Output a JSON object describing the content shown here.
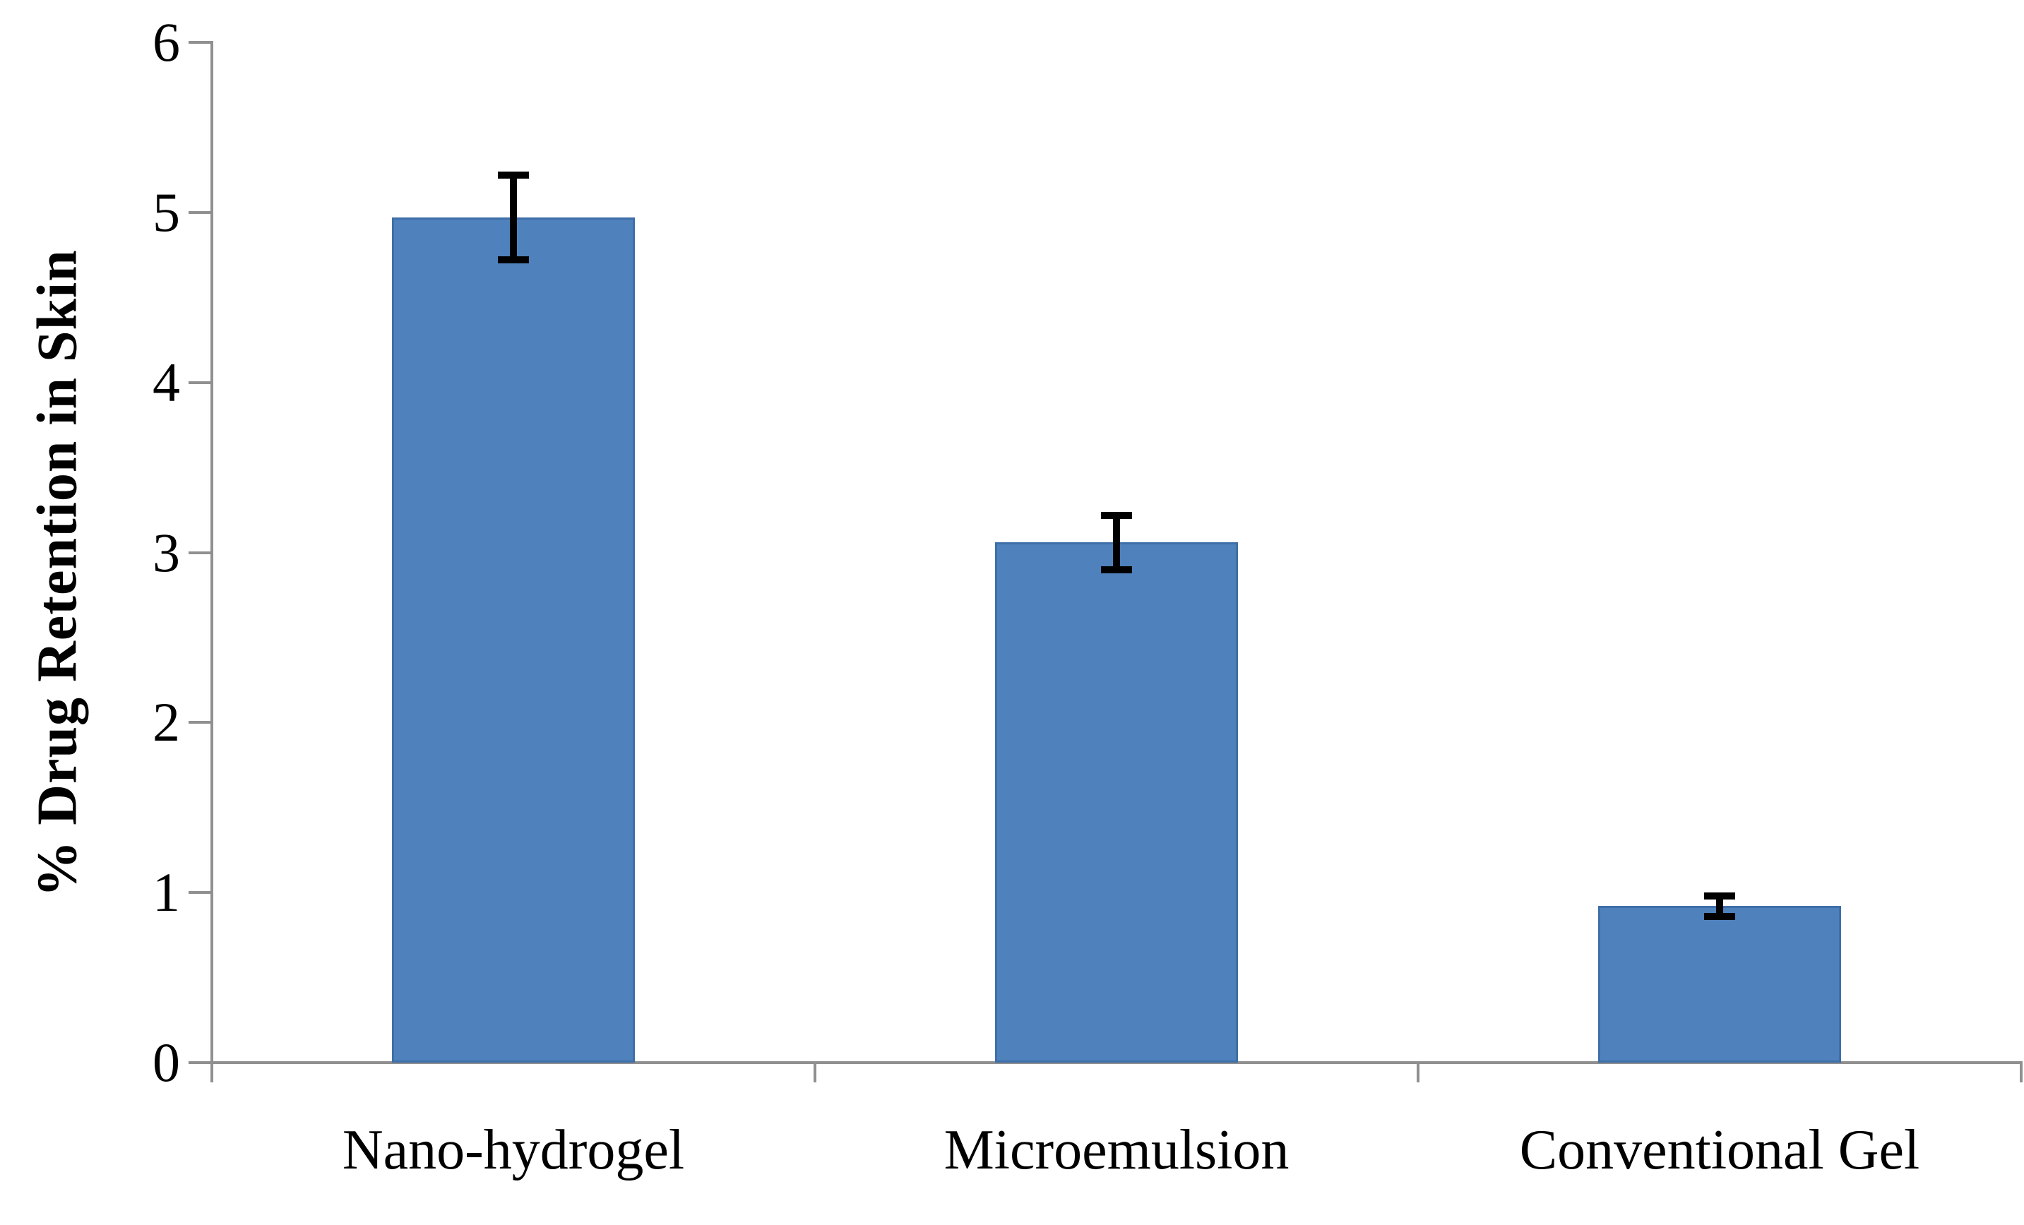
{
  "chart_data": {
    "type": "bar",
    "title": "",
    "ylabel": "% Drug Retention in Skin",
    "xlabel": "",
    "categories": [
      "Nano-hydrogel",
      "Microemulsion",
      "Conventional Gel"
    ],
    "values": [
      4.97,
      3.06,
      0.92
    ],
    "error_bars": [
      0.25,
      0.16,
      0.06
    ],
    "ylim": [
      0,
      6
    ],
    "yticks": [
      0,
      1,
      2,
      3,
      4,
      5,
      6
    ],
    "grid": false,
    "legend": false,
    "bar_color": "#4F81BD",
    "bar_edge_color": "#3E6FA8",
    "axis_color": "#909090",
    "error_color": "#000000",
    "text_color": "#000000",
    "background_color": "#ffffff"
  }
}
